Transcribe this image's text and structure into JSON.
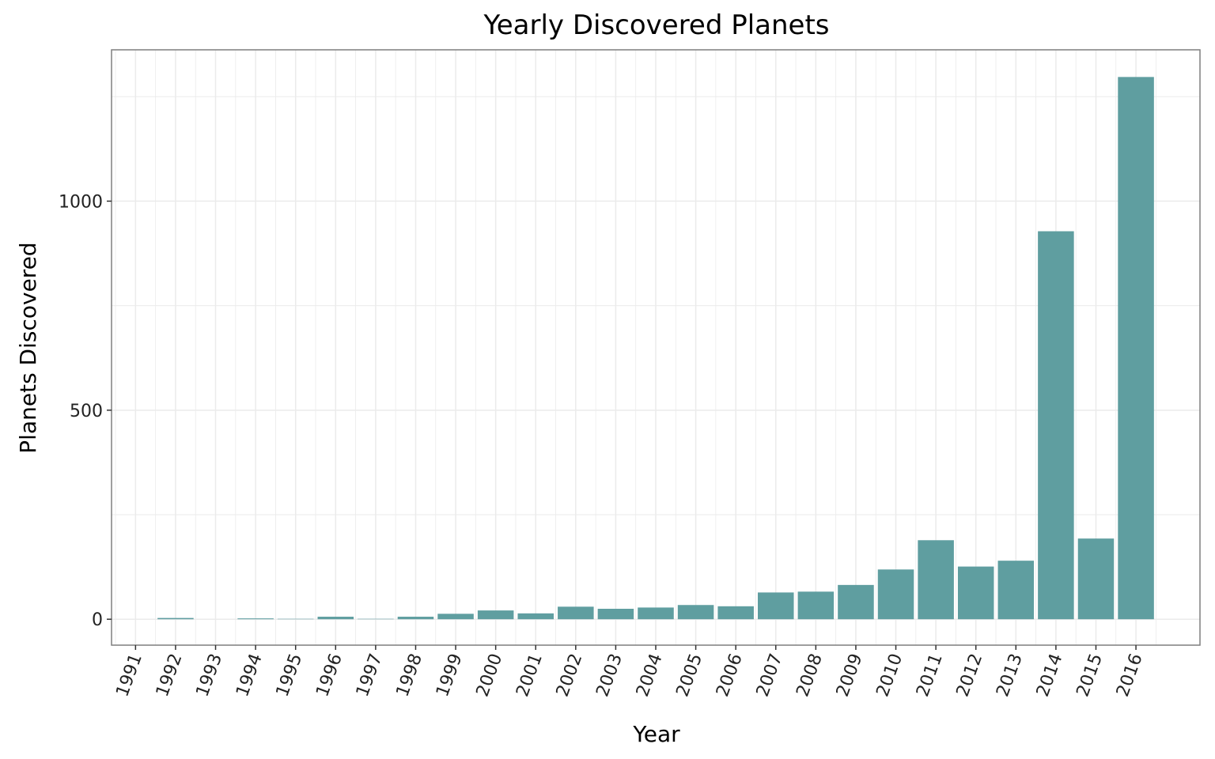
{
  "chart_data": {
    "type": "bar",
    "title": "Yearly Discovered Planets",
    "xlabel": "Year",
    "ylabel": "Planets Discovered",
    "categories": [
      "1991",
      "1992",
      "1993",
      "1994",
      "1995",
      "1996",
      "1997",
      "1998",
      "1999",
      "2000",
      "2001",
      "2002",
      "2003",
      "2004",
      "2005",
      "2006",
      "2007",
      "2008",
      "2009",
      "2010",
      "2011",
      "2012",
      "2013",
      "2014",
      "2015",
      "2016"
    ],
    "values": [
      0,
      3,
      0,
      2,
      1,
      6,
      1,
      6,
      13,
      21,
      14,
      30,
      25,
      28,
      34,
      31,
      64,
      66,
      82,
      119,
      189,
      126,
      140,
      928,
      193,
      1297
    ],
    "y_ticks": [
      0,
      500,
      1000
    ],
    "ylim": [
      -62,
      1362
    ],
    "bar_color": "#5f9ea0",
    "grid": true,
    "legend": "none"
  }
}
